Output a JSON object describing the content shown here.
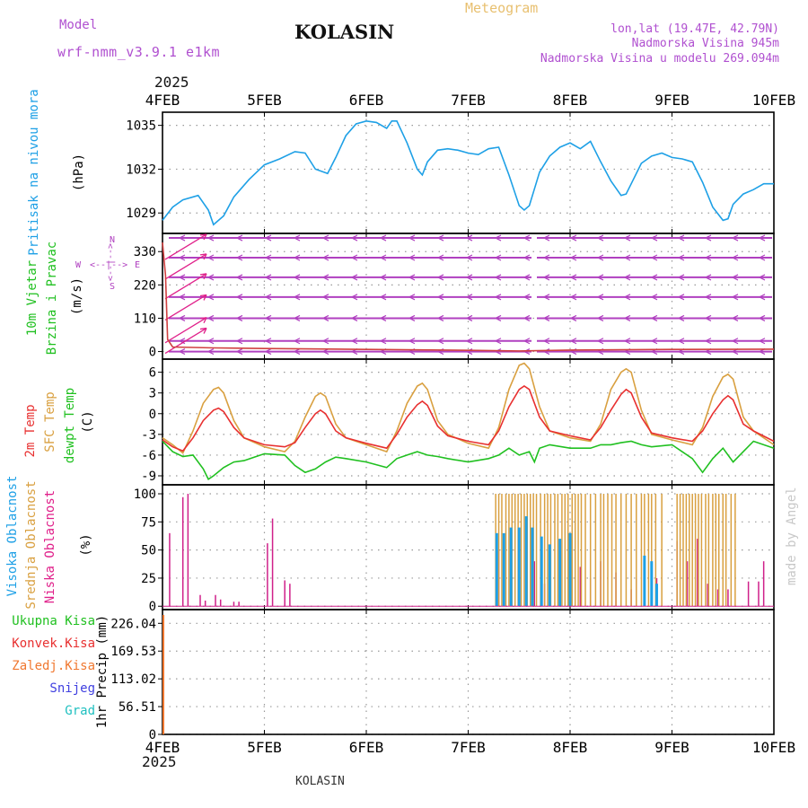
{
  "header": {
    "model_label": "Model",
    "model_name": "wrf-nmm_v3.9.1 e1km",
    "station": "KOLASIN",
    "meteogram_label": "Meteogram",
    "lonlat": "lon,lat (19.47E, 42.79N)",
    "elevation": "Nadmorska Visina 945m",
    "model_elevation": "Nadmorska Visina u modelu 269.094m",
    "year_top": "2025",
    "year_bottom": "2025",
    "footer_station": "KOLASIN",
    "credit": "made by Angel"
  },
  "colors": {
    "pressure": "#1ea0e6",
    "wind_arrows": "#b040c0",
    "wind_speed": "#d04040",
    "temp_2m": "#e83030",
    "temp_sfc": "#d9a040",
    "dewpoint": "#20c020",
    "cloud_high": "#1ea0e6",
    "cloud_mid": "#d9a040",
    "cloud_low": "#d0208a",
    "precip_total": "#20c020",
    "precip_conv": "#e83030",
    "precip_frz": "#f07830",
    "snow": "#4040e0",
    "hail": "#20c0c0"
  },
  "chart_data": [
    {
      "type": "line",
      "panel": "pressure",
      "ylabel_main": "Pritisak na nivou mora",
      "ylabel_unit": "(hPa)",
      "x_ticks": [
        "4FEB",
        "5FEB",
        "6FEB",
        "7FEB",
        "8FEB",
        "9FEB",
        "10FEB"
      ],
      "xlim_days": [
        4,
        10
      ],
      "y_ticks": [
        1029,
        1032,
        1035
      ],
      "ylim": [
        1027.6,
        1035.9
      ],
      "grid": true,
      "series": [
        {
          "x": [
            4.0,
            4.1,
            4.2,
            4.35,
            4.45,
            4.5,
            4.6,
            4.7,
            4.85,
            5.0,
            5.15,
            5.3,
            5.4,
            5.5,
            5.62,
            5.7,
            5.8,
            5.9,
            6.0,
            6.1,
            6.2,
            6.25,
            6.3,
            6.4,
            6.5,
            6.55,
            6.6,
            6.7,
            6.8,
            6.9,
            7.0,
            7.1,
            7.2,
            7.3,
            7.4,
            7.5,
            7.55,
            7.6,
            7.7,
            7.8,
            7.9,
            8.0,
            8.1,
            8.2,
            8.3,
            8.4,
            8.5,
            8.55,
            8.6,
            8.7,
            8.8,
            8.9,
            9.0,
            9.1,
            9.2,
            9.3,
            9.4,
            9.5,
            9.55,
            9.6,
            9.7,
            9.8,
            9.9,
            10.0
          ],
          "y": [
            1028.5,
            1029.4,
            1029.9,
            1030.2,
            1029.2,
            1028.2,
            1028.8,
            1030.1,
            1031.3,
            1032.3,
            1032.7,
            1033.2,
            1033.1,
            1032.0,
            1031.7,
            1032.8,
            1034.3,
            1035.1,
            1035.3,
            1035.2,
            1034.8,
            1035.3,
            1035.3,
            1033.8,
            1032.0,
            1031.6,
            1032.5,
            1033.3,
            1033.4,
            1033.3,
            1033.1,
            1033.0,
            1033.4,
            1033.5,
            1031.6,
            1029.5,
            1029.2,
            1029.5,
            1031.8,
            1032.9,
            1033.5,
            1033.8,
            1033.4,
            1033.9,
            1032.5,
            1031.2,
            1030.2,
            1030.3,
            1031.0,
            1032.4,
            1032.9,
            1033.1,
            1032.8,
            1032.7,
            1032.5,
            1031.1,
            1029.4,
            1028.5,
            1028.6,
            1029.6,
            1030.3,
            1030.6,
            1031.0,
            1031.0
          ]
        }
      ]
    },
    {
      "type": "line",
      "panel": "wind",
      "ylabel_main": "10m Vjetar",
      "ylabel_sub": "Brzina i Pravac",
      "ylabel_unit": "(m/s)",
      "compass": {
        "n": "N",
        "s": "S",
        "e": "E",
        "w": "W",
        "arrow": "<--|-->"
      },
      "y_ticks": [
        0,
        110,
        220,
        330
      ],
      "ylim": [
        -25,
        390
      ],
      "grid": true,
      "series": [
        {
          "name": "speed",
          "x": [
            4.0,
            4.03,
            4.05,
            4.1,
            4.5,
            5.0,
            6.0,
            7.0,
            7.5,
            8.0,
            9.0,
            10.0
          ],
          "y": [
            360,
            250,
            40,
            15,
            12,
            10,
            7,
            4,
            2,
            5,
            7,
            8
          ]
        }
      ],
      "arrow_row_values": [
        0,
        35,
        110,
        180,
        245,
        310,
        375
      ]
    },
    {
      "type": "line",
      "panel": "temperature",
      "ylabels": [
        "2m Temp",
        "SFC Temp",
        "dewpt Temp"
      ],
      "ylabel_unit": "(C)",
      "y_ticks": [
        -9,
        -6,
        -3,
        0,
        3,
        6
      ],
      "ylim": [
        -10.3,
        7.9
      ],
      "grid": true,
      "series": [
        {
          "name": "2m Temp",
          "x": [
            4.0,
            4.1,
            4.2,
            4.3,
            4.4,
            4.5,
            4.55,
            4.6,
            4.7,
            4.8,
            5.0,
            5.2,
            5.3,
            5.4,
            5.5,
            5.55,
            5.6,
            5.7,
            5.8,
            6.0,
            6.2,
            6.3,
            6.4,
            6.5,
            6.55,
            6.6,
            6.7,
            6.8,
            7.0,
            7.2,
            7.3,
            7.4,
            7.5,
            7.55,
            7.6,
            7.7,
            7.8,
            8.0,
            8.2,
            8.3,
            8.4,
            8.5,
            8.55,
            8.6,
            8.7,
            8.8,
            9.0,
            9.2,
            9.3,
            9.4,
            9.5,
            9.55,
            9.6,
            9.7,
            9.8,
            10.0
          ],
          "y": [
            -3.8,
            -4.8,
            -5.4,
            -3.5,
            -1.0,
            0.5,
            0.8,
            0.3,
            -2.0,
            -3.5,
            -4.5,
            -4.8,
            -4.2,
            -2.0,
            0.0,
            0.5,
            0.0,
            -2.5,
            -3.5,
            -4.3,
            -5.0,
            -3.0,
            -0.5,
            1.3,
            1.8,
            1.2,
            -1.8,
            -3.2,
            -4.0,
            -4.5,
            -2.5,
            1.0,
            3.5,
            4.0,
            3.5,
            -0.5,
            -2.5,
            -3.2,
            -3.8,
            -2.0,
            0.5,
            2.8,
            3.5,
            3.0,
            -0.5,
            -2.8,
            -3.5,
            -4.0,
            -2.5,
            0.0,
            2.0,
            2.6,
            2.0,
            -1.5,
            -2.5,
            -4.0
          ]
        },
        {
          "name": "SFC Temp",
          "x": [
            4.0,
            4.1,
            4.2,
            4.3,
            4.4,
            4.5,
            4.55,
            4.6,
            4.7,
            4.8,
            5.0,
            5.2,
            5.3,
            5.4,
            5.5,
            5.55,
            5.6,
            5.7,
            5.8,
            6.0,
            6.2,
            6.3,
            6.4,
            6.5,
            6.55,
            6.6,
            6.7,
            6.8,
            7.0,
            7.2,
            7.3,
            7.4,
            7.5,
            7.55,
            7.6,
            7.7,
            7.8,
            8.0,
            8.2,
            8.3,
            8.4,
            8.5,
            8.55,
            8.6,
            8.7,
            8.8,
            9.0,
            9.2,
            9.3,
            9.4,
            9.5,
            9.55,
            9.6,
            9.7,
            9.8,
            10.0
          ],
          "y": [
            -3.5,
            -4.5,
            -5.7,
            -2.5,
            1.5,
            3.5,
            3.8,
            3.0,
            -1.0,
            -3.5,
            -4.8,
            -5.5,
            -4.0,
            -0.5,
            2.5,
            3.0,
            2.5,
            -1.5,
            -3.5,
            -4.5,
            -5.5,
            -2.5,
            1.5,
            4.0,
            4.4,
            3.5,
            -1.0,
            -3.0,
            -4.3,
            -5.0,
            -2.0,
            3.5,
            7.0,
            7.3,
            6.5,
            1.0,
            -2.5,
            -3.5,
            -4.0,
            -1.5,
            3.5,
            6.0,
            6.5,
            6.0,
            0.5,
            -3.0,
            -3.8,
            -4.5,
            -2.0,
            2.5,
            5.3,
            5.7,
            5.0,
            -0.5,
            -2.5,
            -4.5
          ]
        },
        {
          "name": "dewpt Temp",
          "x": [
            4.0,
            4.1,
            4.2,
            4.3,
            4.4,
            4.45,
            4.5,
            4.6,
            4.7,
            4.8,
            5.0,
            5.2,
            5.3,
            5.4,
            5.5,
            5.6,
            5.7,
            5.8,
            6.0,
            6.2,
            6.3,
            6.4,
            6.5,
            6.6,
            6.7,
            6.8,
            7.0,
            7.2,
            7.3,
            7.4,
            7.5,
            7.6,
            7.65,
            7.7,
            7.8,
            8.0,
            8.2,
            8.3,
            8.4,
            8.5,
            8.6,
            8.7,
            8.8,
            9.0,
            9.2,
            9.3,
            9.4,
            9.5,
            9.6,
            9.7,
            9.8,
            10.0
          ],
          "y": [
            -4.0,
            -5.5,
            -6.2,
            -6.0,
            -8.0,
            -9.5,
            -9.0,
            -7.8,
            -7.0,
            -6.8,
            -5.8,
            -6.0,
            -7.5,
            -8.5,
            -8.0,
            -7.0,
            -6.3,
            -6.5,
            -7.0,
            -7.8,
            -6.5,
            -6.0,
            -5.5,
            -6.0,
            -6.2,
            -6.5,
            -7.0,
            -6.5,
            -6.0,
            -5.0,
            -6.0,
            -5.5,
            -7.0,
            -5.0,
            -4.5,
            -5.0,
            -5.0,
            -4.5,
            -4.5,
            -4.2,
            -4.0,
            -4.5,
            -4.8,
            -4.5,
            -6.5,
            -8.5,
            -6.5,
            -5.0,
            -7.0,
            -5.5,
            -4.0,
            -5.0
          ]
        }
      ]
    },
    {
      "type": "bar",
      "panel": "clouds",
      "ylabels": [
        "Visoka Oblacnost",
        "Srednja Oblacnost",
        "Niska Oblacnost"
      ],
      "ylabel_unit": "(%)",
      "y_ticks": [
        0,
        25,
        50,
        75,
        100
      ],
      "ylim": [
        -3,
        108
      ],
      "grid": true,
      "series": [
        {
          "name": "Niska Oblacnost",
          "x": [
            4.07,
            4.2,
            4.25,
            4.37,
            4.42,
            4.52,
            4.57,
            4.7,
            4.75,
            5.03,
            5.08,
            5.2,
            5.25,
            7.3,
            7.65,
            7.75,
            8.1,
            8.2,
            8.3,
            8.45,
            8.6,
            8.65,
            8.85,
            9.05,
            9.15,
            9.25,
            9.35,
            9.45,
            9.55,
            9.75,
            9.85,
            9.9
          ],
          "y": [
            65,
            97,
            100,
            10,
            5,
            10,
            6,
            4,
            4,
            56,
            78,
            23,
            20,
            50,
            40,
            20,
            35,
            25,
            40,
            30,
            15,
            25,
            25,
            58,
            40,
            60,
            20,
            15,
            15,
            22,
            22,
            40
          ]
        },
        {
          "name": "Srednja Oblacnost",
          "x": [
            7.27,
            7.3,
            7.33,
            7.37,
            7.4,
            7.43,
            7.46,
            7.49,
            7.52,
            7.55,
            7.58,
            7.61,
            7.64,
            7.67,
            7.71,
            7.75,
            7.78,
            7.81,
            7.85,
            7.88,
            7.92,
            7.95,
            7.98,
            8.02,
            8.05,
            8.08,
            8.11,
            8.15,
            8.2,
            8.25,
            8.3,
            8.33,
            8.37,
            8.41,
            8.45,
            8.5,
            8.55,
            8.6,
            8.65,
            8.7,
            8.73,
            8.77,
            8.8,
            8.84,
            8.9,
            9.05,
            9.08,
            9.11,
            9.14,
            9.17,
            9.2,
            9.23,
            9.26,
            9.29,
            9.33,
            9.36,
            9.4,
            9.43,
            9.46,
            9.5,
            9.53,
            9.58,
            9.62
          ],
          "y": [
            100,
            100,
            100,
            100,
            100,
            100,
            100,
            100,
            100,
            100,
            100,
            100,
            100,
            100,
            100,
            100,
            100,
            100,
            100,
            100,
            100,
            100,
            100,
            100,
            100,
            100,
            100,
            100,
            100,
            100,
            100,
            100,
            100,
            100,
            100,
            100,
            100,
            100,
            100,
            100,
            100,
            100,
            100,
            100,
            100,
            100,
            100,
            100,
            100,
            100,
            100,
            100,
            100,
            100,
            100,
            100,
            100,
            100,
            100,
            100,
            100,
            100,
            100
          ]
        },
        {
          "name": "Visoka Oblacnost",
          "x": [
            7.28,
            7.35,
            7.42,
            7.5,
            7.57,
            7.63,
            7.72,
            7.8,
            7.9,
            8.0,
            8.73,
            8.8,
            8.85
          ],
          "y": [
            65,
            65,
            70,
            70,
            80,
            70,
            62,
            55,
            60,
            65,
            45,
            40,
            20
          ]
        }
      ]
    },
    {
      "type": "bar",
      "panel": "precip",
      "ylabels": [
        "Ukupna Kisa",
        "Konvek.Kisa",
        "Zaledj.Kisa",
        "Snijeg",
        "Grad"
      ],
      "ylabel_main": "1hr Precip (mm)",
      "y_ticks": [
        0,
        56.51,
        113.02,
        169.53,
        226.04
      ],
      "ylim": [
        0,
        254
      ],
      "grid": true,
      "series": []
    }
  ]
}
